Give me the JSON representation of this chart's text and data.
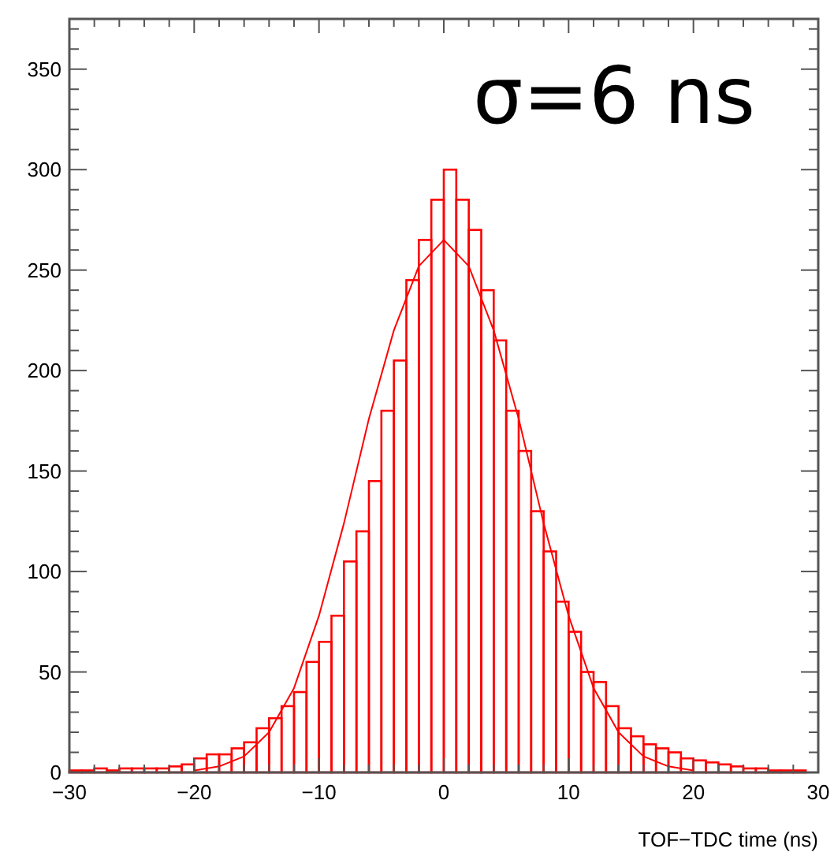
{
  "chart_data": {
    "type": "histogram",
    "xlabel": "TOF−TDC time (ns)",
    "annotations": [
      "σ=6 ns"
    ],
    "xlim": [
      -30,
      30
    ],
    "ylim": [
      0,
      375
    ],
    "xticks": [
      {
        "value": -30,
        "label": "−30"
      },
      {
        "value": -28,
        "label": null
      },
      {
        "value": -26,
        "label": null
      },
      {
        "value": -24,
        "label": null
      },
      {
        "value": -22,
        "label": null
      },
      {
        "value": -20,
        "label": "−20"
      },
      {
        "value": -18,
        "label": null
      },
      {
        "value": -16,
        "label": null
      },
      {
        "value": -14,
        "label": null
      },
      {
        "value": -12,
        "label": null
      },
      {
        "value": -10,
        "label": "−10"
      },
      {
        "value": -8,
        "label": null
      },
      {
        "value": -6,
        "label": null
      },
      {
        "value": -4,
        "label": null
      },
      {
        "value": -2,
        "label": null
      },
      0,
      {
        "value": 2,
        "label": null
      },
      {
        "value": 4,
        "label": null
      },
      {
        "value": 6,
        "label": null
      },
      {
        "value": 8,
        "label": null
      },
      10,
      {
        "value": 12,
        "label": null
      },
      {
        "value": 14,
        "label": null
      },
      {
        "value": 16,
        "label": null
      },
      {
        "value": 18,
        "label": null
      },
      20,
      {
        "value": 22,
        "label": null
      },
      {
        "value": 24,
        "label": null
      },
      {
        "value": 26,
        "label": null
      },
      {
        "value": 28,
        "label": null
      },
      30
    ],
    "yticks": [
      0,
      {
        "value": 10,
        "label": null
      },
      {
        "value": 20,
        "label": null
      },
      {
        "value": 30,
        "label": null
      },
      {
        "value": 40,
        "label": null
      },
      50,
      {
        "value": 60,
        "label": null
      },
      {
        "value": 70,
        "label": null
      },
      {
        "value": 80,
        "label": null
      },
      {
        "value": 90,
        "label": null
      },
      100,
      {
        "value": 110,
        "label": null
      },
      {
        "value": 120,
        "label": null
      },
      {
        "value": 130,
        "label": null
      },
      {
        "value": 140,
        "label": null
      },
      150,
      {
        "value": 160,
        "label": null
      },
      {
        "value": 170,
        "label": null
      },
      {
        "value": 180,
        "label": null
      },
      {
        "value": 190,
        "label": null
      },
      200,
      {
        "value": 210,
        "label": null
      },
      {
        "value": 220,
        "label": null
      },
      {
        "value": 230,
        "label": null
      },
      {
        "value": 240,
        "label": null
      },
      250,
      {
        "value": 260,
        "label": null
      },
      {
        "value": 270,
        "label": null
      },
      {
        "value": 280,
        "label": null
      },
      {
        "value": 290,
        "label": null
      },
      300,
      {
        "value": 310,
        "label": null
      },
      {
        "value": 320,
        "label": null
      },
      {
        "value": 330,
        "label": null
      },
      {
        "value": 340,
        "label": null
      },
      350,
      {
        "value": 360,
        "label": null
      },
      {
        "value": 370,
        "label": null
      }
    ],
    "bins": [
      -30,
      -29,
      -28,
      -27,
      -26,
      -25,
      -24,
      -23,
      -22,
      -21,
      -20,
      -19,
      -18,
      -17,
      -16,
      -15,
      -14,
      -13,
      -12,
      -11,
      -10,
      -9,
      -8,
      -7,
      -6,
      -5,
      -4,
      -3,
      -2,
      -1,
      0,
      1,
      2,
      3,
      4,
      5,
      6,
      7,
      8,
      9,
      10,
      11,
      12,
      13,
      14,
      15,
      16,
      17,
      18,
      19,
      20,
      21,
      22,
      23,
      24,
      25,
      26,
      27,
      28,
      29,
      30
    ],
    "values": [
      1,
      1,
      2,
      1,
      2,
      2,
      2,
      2,
      3,
      4,
      7,
      9,
      9,
      12,
      15,
      22,
      27,
      33,
      40,
      55,
      65,
      78,
      105,
      120,
      145,
      180,
      205,
      245,
      265,
      285,
      300,
      285,
      270,
      240,
      215,
      180,
      160,
      130,
      110,
      85,
      70,
      50,
      45,
      33,
      22,
      18,
      14,
      12,
      10,
      7,
      6,
      5,
      4,
      3,
      2,
      2,
      1,
      1,
      1,
      0
    ],
    "color": "#ff0000",
    "series": [
      {
        "type": "line",
        "color": "#ff0000",
        "x": [
          -20,
          -18,
          -16,
          -14,
          -12,
          -10,
          -8,
          -6,
          -4,
          -2,
          0,
          2,
          4,
          6,
          8,
          10,
          12,
          14,
          16,
          18,
          20
        ],
        "values": [
          1,
          3,
          8,
          20,
          42,
          78,
          124,
          176,
          220,
          252,
          265,
          252,
          220,
          176,
          124,
          78,
          42,
          20,
          8,
          3,
          1
        ]
      }
    ]
  }
}
